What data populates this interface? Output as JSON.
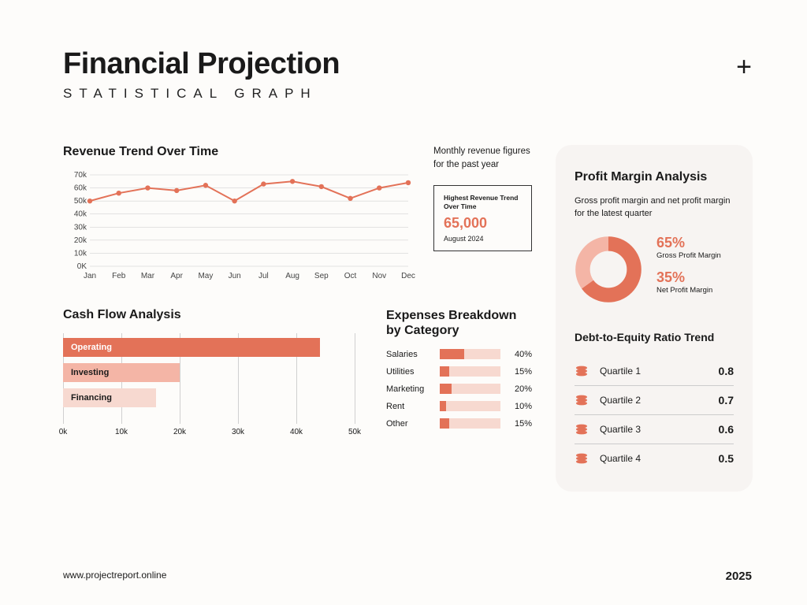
{
  "header": {
    "title": "Financial Projection",
    "subtitle": "STATISTICAL GRAPH"
  },
  "colors": {
    "accent": "#e37258",
    "accent_light": "#f4b5a6",
    "accent_lighter": "#f7d9d0",
    "text": "#1a1a1a",
    "bg": "#fdfcfa",
    "panel_bg": "#f7f4f2",
    "grid": "#c9c9c9"
  },
  "revenue": {
    "title": "Revenue Trend Over Time",
    "type": "line",
    "months": [
      "Jan",
      "Feb",
      "Mar",
      "Apr",
      "May",
      "Jun",
      "Jul",
      "Aug",
      "Sep",
      "Oct",
      "Nov",
      "Dec"
    ],
    "values": [
      50,
      56,
      60,
      58,
      62,
      50,
      63,
      65,
      61,
      52,
      60,
      64
    ],
    "ylim": [
      0,
      70
    ],
    "ytick_step": 10,
    "ytick_labels": [
      "0K",
      "10k",
      "20k",
      "30k",
      "40k",
      "50k",
      "60k",
      "70k"
    ],
    "line_color": "#e37258",
    "marker_color": "#e37258",
    "description": "Monthly revenue figures for the past year",
    "highlight": {
      "label": "Highest Revenue Trend Over Time",
      "value": "65,000",
      "sub": "August 2024"
    }
  },
  "cashflow": {
    "title": "Cash Flow Analysis",
    "type": "bar-horizontal",
    "xlim": [
      0,
      50
    ],
    "xtick_step": 10,
    "xtick_labels": [
      "0k",
      "10k",
      "20k",
      "30k",
      "40k",
      "50k"
    ],
    "bars": [
      {
        "label": "Operating",
        "value": 44,
        "color": "#e37258",
        "text_color": "#ffffff"
      },
      {
        "label": "Investing",
        "value": 20,
        "color": "#f4b5a6",
        "text_color": "#1a1a1a"
      },
      {
        "label": "Financing",
        "value": 16,
        "color": "#f7d9d0",
        "text_color": "#1a1a1a"
      }
    ]
  },
  "expenses": {
    "title": "Expenses Breakdown by Category",
    "type": "bar-horizontal-pct",
    "bar_bg": "#f7d9d0",
    "bar_fg": "#e37258",
    "items": [
      {
        "label": "Salaries",
        "pct": 40,
        "fill": 40
      },
      {
        "label": "Utilities",
        "pct": 15,
        "fill": 15
      },
      {
        "label": "Marketing",
        "pct": 20,
        "fill": 20
      },
      {
        "label": "Rent",
        "pct": 10,
        "fill": 10
      },
      {
        "label": "Other",
        "pct": 15,
        "fill": 15
      }
    ]
  },
  "profit": {
    "title": "Profit Margin Analysis",
    "description": "Gross profit margin and net profit margin for the latest quarter",
    "type": "donut",
    "slices": [
      {
        "label": "Gross Profit Margin",
        "pct": 65,
        "value": "65%",
        "color": "#e37258"
      },
      {
        "label": "Net Profit Margin",
        "pct": 35,
        "value": "35%",
        "color": "#f4b5a6"
      }
    ]
  },
  "debt": {
    "title": "Debt-to-Equity Ratio Trend",
    "rows": [
      {
        "label": "Quartile 1",
        "value": "0.8"
      },
      {
        "label": "Quartile 2",
        "value": "0.7"
      },
      {
        "label": "Quartile 3",
        "value": "0.6"
      },
      {
        "label": "Quartile 4",
        "value": "0.5"
      }
    ],
    "icon_color": "#e37258"
  },
  "footer": {
    "url": "www.projectreport.online",
    "year": "2025"
  }
}
